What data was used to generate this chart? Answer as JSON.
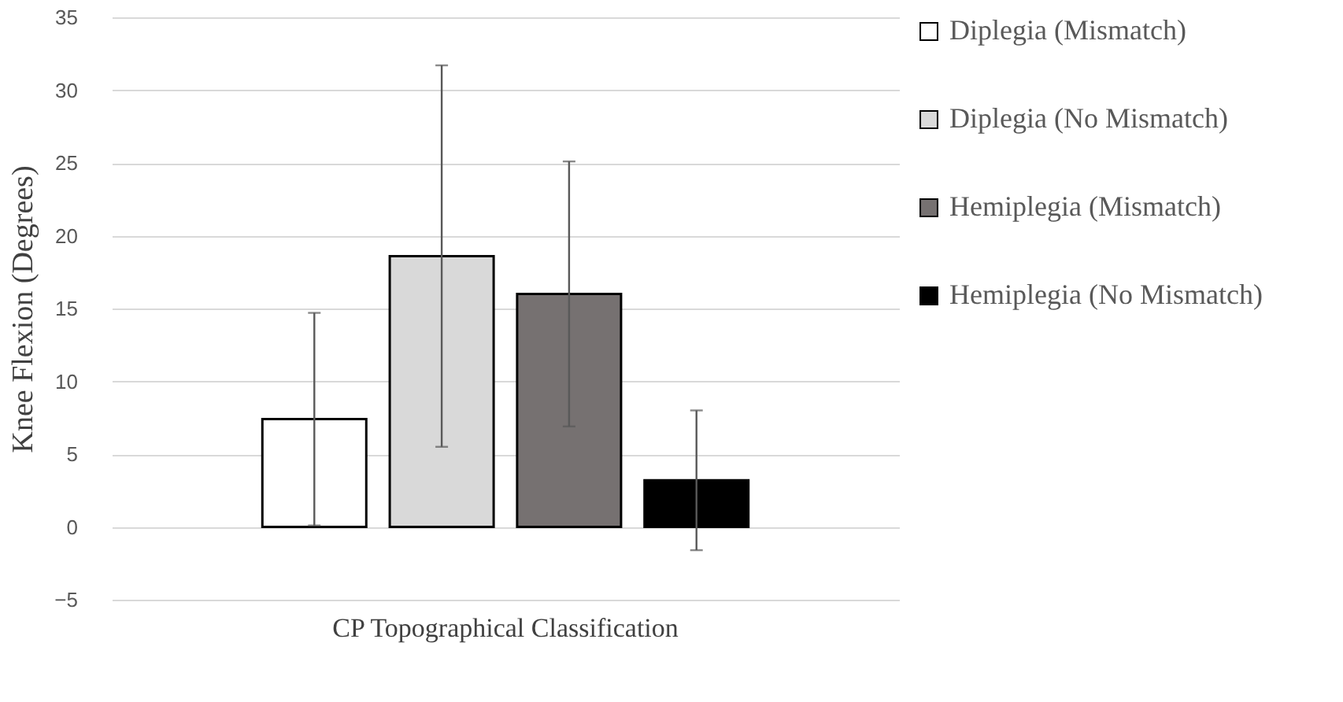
{
  "chart_data": {
    "type": "bar",
    "ylabel": "Knee Flexion (Degrees)",
    "categories": [
      "CP Topographical Classification"
    ],
    "series": [
      {
        "name": "Diplegia (Mismatch)",
        "color": "#ffffff",
        "values": [
          7.4
        ],
        "errors": [
          7.3
        ]
      },
      {
        "name": "Diplegia (No Mismatch)",
        "color": "#d9d9d9",
        "values": [
          18.6
        ],
        "errors": [
          13.1
        ]
      },
      {
        "name": "Hemiplegia (Mismatch)",
        "color": "#767171",
        "values": [
          16.0
        ],
        "errors": [
          9.1
        ]
      },
      {
        "name": "Hemiplegia (No Mismatch)",
        "color": "#000000",
        "values": [
          3.2
        ],
        "errors": [
          4.8
        ]
      }
    ],
    "ylim": [
      -5,
      35
    ],
    "yticks": [
      -5,
      0,
      5,
      10,
      15,
      20,
      25,
      30,
      35
    ],
    "grid": "y",
    "legend": "right"
  }
}
